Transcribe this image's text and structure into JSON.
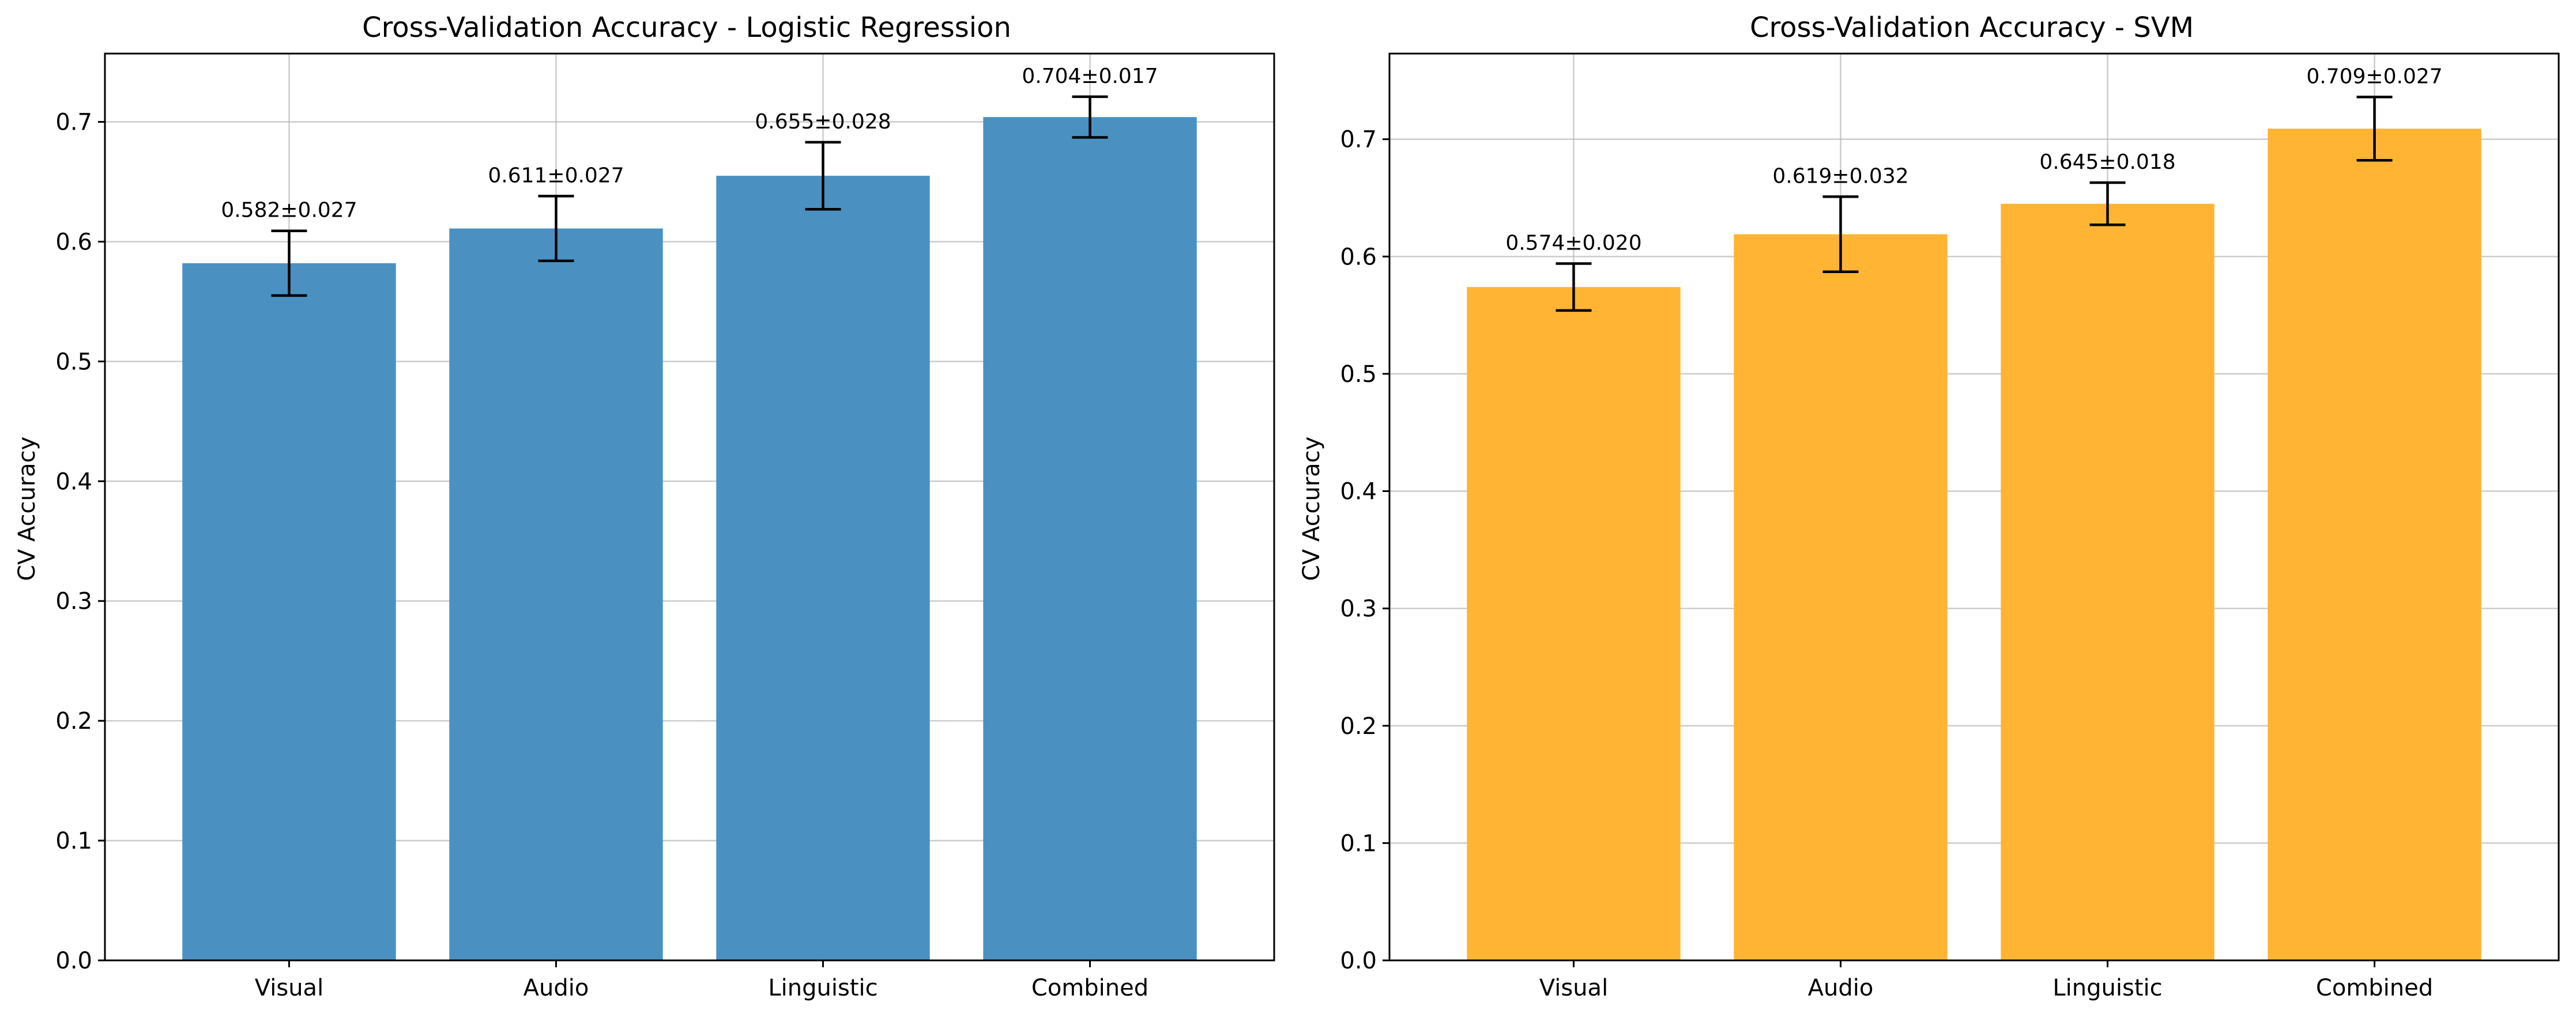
{
  "chart_data": [
    {
      "type": "bar",
      "title": "Cross-Validation Accuracy - Logistic Regression",
      "xlabel": "",
      "ylabel": "CV Accuracy",
      "categories": [
        "Visual",
        "Audio",
        "Linguistic",
        "Combined"
      ],
      "values": [
        0.582,
        0.611,
        0.655,
        0.704
      ],
      "errors": [
        0.027,
        0.027,
        0.028,
        0.017
      ],
      "data_labels": [
        "0.582±0.027",
        "0.611±0.027",
        "0.655±0.028",
        "0.704±0.017"
      ],
      "ylim": [
        0,
        0.757
      ],
      "yticks": [
        0.0,
        0.1,
        0.2,
        0.3,
        0.4,
        0.5,
        0.6,
        0.7
      ],
      "ytick_labels": [
        "0.0",
        "0.1",
        "0.2",
        "0.3",
        "0.4",
        "0.5",
        "0.6",
        "0.7"
      ],
      "bar_color": "#4a91c2",
      "grid": true
    },
    {
      "type": "bar",
      "title": "Cross-Validation Accuracy - SVM",
      "xlabel": "",
      "ylabel": "CV Accuracy",
      "categories": [
        "Visual",
        "Audio",
        "Linguistic",
        "Combined"
      ],
      "values": [
        0.574,
        0.619,
        0.645,
        0.709
      ],
      "errors": [
        0.02,
        0.032,
        0.018,
        0.027
      ],
      "data_labels": [
        "0.574±0.020",
        "0.619±0.032",
        "0.645±0.018",
        "0.709±0.027"
      ],
      "ylim": [
        0,
        0.773
      ],
      "yticks": [
        0.0,
        0.1,
        0.2,
        0.3,
        0.4,
        0.5,
        0.6,
        0.7
      ],
      "ytick_labels": [
        "0.0",
        "0.1",
        "0.2",
        "0.3",
        "0.4",
        "0.5",
        "0.6",
        "0.7"
      ],
      "bar_color": "#ffb533",
      "grid": true
    }
  ]
}
